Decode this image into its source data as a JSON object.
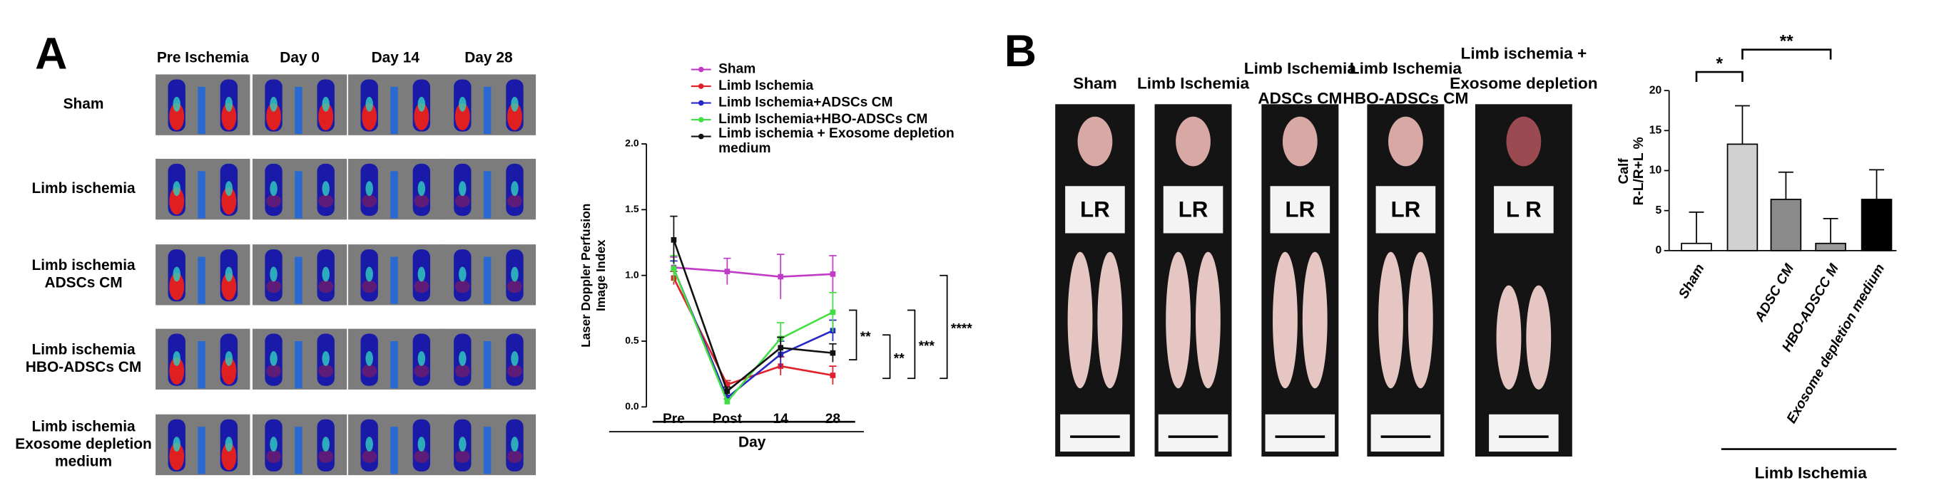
{
  "panel_labels": [
    "A",
    "B"
  ],
  "perfusion_images": {
    "columns": [
      "Pre Ischemia",
      "Day 0",
      "Day 14",
      "Day 28"
    ],
    "rows": [
      [
        "Sham"
      ],
      [
        "Limb ischemia"
      ],
      [
        "Limb ischemia",
        "ADSCs CM"
      ],
      [
        "Limb ischemia",
        "HBO-ADSCs CM"
      ],
      [
        "Limb ischemia",
        "Exosome depletion",
        "medium"
      ]
    ]
  },
  "calf_photos": {
    "headers": [
      [
        "Sham"
      ],
      [
        "Limb Ischemia"
      ],
      [
        "Limb Ischemia",
        "ADSCs CM"
      ],
      [
        "Limb Ischemia",
        "HBO-ADSCs CM"
      ],
      [
        "Limb ischemia +",
        "Exosome depletion",
        "medium"
      ]
    ],
    "photo_labels": [
      "LR",
      "LR",
      "LR",
      "LR",
      "L R"
    ]
  },
  "chart_data": [
    {
      "type": "line",
      "categories": [
        "Pre",
        "Post",
        "14",
        "28"
      ],
      "xlabel": "Day",
      "ylabel": [
        "Laser Doppler Perfusion",
        "Image Index"
      ],
      "ylim": [
        0,
        2
      ],
      "yticks": [
        {
          "value": 0,
          "label": "0.0"
        },
        {
          "value": 0.5,
          "label": "0.5"
        },
        {
          "value": 1,
          "label": "1.0"
        },
        {
          "value": 1.5,
          "label": "1.5"
        },
        {
          "value": 2,
          "label": "2.0"
        }
      ],
      "series": [
        {
          "name": "Sham",
          "color": "#c03cc8",
          "values": [
            1.06,
            1.03,
            0.99,
            1.01
          ],
          "errors": [
            0.08,
            0.1,
            0.17,
            0.14
          ]
        },
        {
          "name": "Limb Ischemia",
          "color": "#e0202a",
          "values": [
            0.98,
            0.17,
            0.31,
            0.24
          ],
          "errors": [
            0.05,
            0.03,
            0.07,
            0.07
          ]
        },
        {
          "name": "Limb Ischemia+ADSCs CM",
          "color": "#2828c8",
          "values": [
            1.05,
            0.07,
            0.4,
            0.58
          ],
          "errors": [
            0.06,
            0.02,
            0.1,
            0.08
          ]
        },
        {
          "name": "Limb Ischemia+HBO-ADSCs CM",
          "color": "#44dd44",
          "values": [
            1.05,
            0.04,
            0.52,
            0.72
          ],
          "errors": [
            0.1,
            0.02,
            0.12,
            0.15
          ]
        },
        {
          "name": "Limb ischemia + Exosome depletion medium",
          "color": "#111111",
          "values": [
            1.27,
            0.12,
            0.45,
            0.41
          ],
          "errors": [
            0.18,
            0.03,
            0.08,
            0.07
          ]
        }
      ],
      "annotations": [
        "**",
        "**",
        "***",
        "****"
      ]
    },
    {
      "type": "bar",
      "categories": [
        "Sham",
        null,
        "ADSC CM",
        "HBO-ADSCC M",
        "Exosome depletion medium"
      ],
      "values": [
        0.9,
        13.3,
        6.4,
        0.9,
        6.4
      ],
      "errors": [
        3.9,
        4.8,
        3.4,
        3.1,
        3.7
      ],
      "colors": [
        "#ffffff",
        "#d0d0d0",
        "#8a8a8a",
        "#9a9a9a",
        "#000000"
      ],
      "ylabel": [
        "Calf",
        "R-L/R+L %"
      ],
      "ylim": [
        0,
        20
      ],
      "yticks": [
        0,
        5,
        10,
        15,
        20
      ],
      "annotations": [
        "*",
        "**"
      ],
      "group_label": "Limb Ischemia"
    }
  ]
}
